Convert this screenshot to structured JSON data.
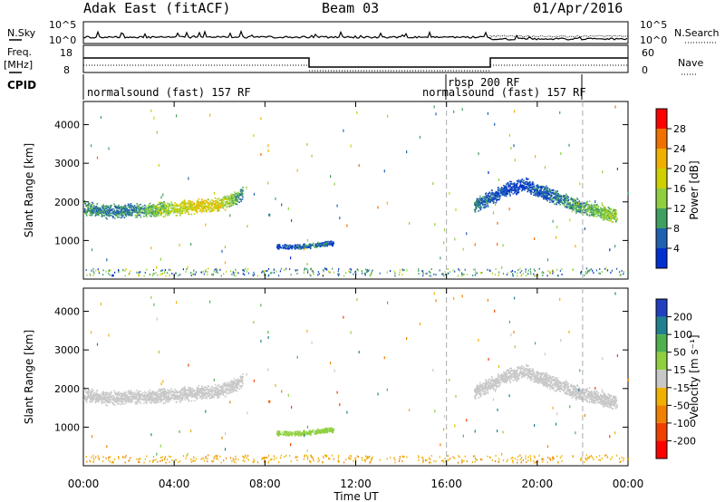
{
  "header": {
    "station": "Adak East (fitACF)",
    "beam": "Beam 03",
    "date": "01/Apr/2016"
  },
  "summary": {
    "nsky_label": "N.Sky",
    "nsearch_label": "N.Search",
    "left_ticks": [
      "10^5",
      "10^0"
    ],
    "right_ticks": [
      "10^5",
      "10^0"
    ],
    "freq_label": "Freq.",
    "freq_unit": "[MHz]",
    "freq_ticks": [
      "18",
      "8"
    ],
    "nave_ticks": [
      "60",
      "0"
    ],
    "nave_label": "Nave",
    "cpid_label": "CPID",
    "program_1": "normalsound (fast) 157 RF",
    "program_2": "rbsp 200 RF",
    "program_3": "normalsound (fast) 157 RF"
  },
  "power_bar": {
    "label": "Power [dB]",
    "ticks": [
      "28",
      "24",
      "20",
      "16",
      "12",
      "8",
      "4"
    ],
    "colors": [
      "#ff0000",
      "#f07000",
      "#f0b000",
      "#d0d000",
      "#90d040",
      "#40a060",
      "#2060b0",
      "#0030d0"
    ]
  },
  "velocity_bar": {
    "label": "Velocity [m s⁻¹]",
    "ticks": [
      "200",
      "100",
      "50",
      "15",
      "-15",
      "-50",
      "-100",
      "-200"
    ],
    "colors": [
      "#2040c0",
      "#208090",
      "#50b050",
      "#90d040",
      "#c8c8c8",
      "#f0b000",
      "#f08000",
      "#f04000",
      "#ff0000"
    ]
  },
  "chart_data": [
    {
      "type": "scatter",
      "title": "",
      "xlabel": "Time UT",
      "ylabel": "Slant Range [km]",
      "xlim": [
        "00:00",
        "24:00"
      ],
      "xticks": [
        "00:00",
        "04:00",
        "08:00",
        "12:00",
        "16:00",
        "20:00",
        "00:00"
      ],
      "ylim": [
        0,
        4600
      ],
      "yticks": [
        1000,
        2000,
        3000,
        4000
      ],
      "color_quantity": "Power [dB]",
      "series": [
        {
          "x_hours": [
            0,
            1,
            2,
            3,
            4,
            5,
            6,
            7
          ],
          "slant_range_km": [
            1850,
            1750,
            1800,
            1800,
            1850,
            1900,
            1950,
            2200
          ],
          "power_db": [
            12,
            10,
            10,
            14,
            18,
            22,
            20,
            10
          ]
        },
        {
          "x_hours": [
            8.5,
            9.5,
            10.3,
            11
          ],
          "slant_range_km": [
            850,
            850,
            900,
            950
          ],
          "power_db": [
            6,
            8,
            10,
            6
          ]
        },
        {
          "x_hours": [
            17.2,
            18.5,
            19.5,
            20.5,
            21.5,
            22.5,
            23.5
          ],
          "slant_range_km": [
            1900,
            2300,
            2450,
            2200,
            1950,
            1800,
            1650
          ],
          "power_db": [
            10,
            6,
            6,
            8,
            12,
            14,
            16
          ]
        }
      ]
    },
    {
      "type": "scatter",
      "title": "",
      "xlabel": "Time UT",
      "ylabel": "Slant Range [km]",
      "xlim": [
        "00:00",
        "24:00"
      ],
      "xticks": [
        "00:00",
        "04:00",
        "08:00",
        "12:00",
        "16:00",
        "20:00",
        "00:00"
      ],
      "ylim": [
        0,
        4600
      ],
      "yticks": [
        1000,
        2000,
        3000,
        4000
      ],
      "color_quantity": "Velocity [m s⁻¹]",
      "series": [
        {
          "x_hours": [
            0,
            1,
            2,
            3,
            4,
            5,
            6,
            7
          ],
          "slant_range_km": [
            1850,
            1750,
            1800,
            1800,
            1850,
            1900,
            1950,
            2200
          ],
          "velocity_ms": [
            0,
            0,
            0,
            0,
            0,
            0,
            0,
            0
          ]
        },
        {
          "x_hours": [
            8.5,
            9.5,
            10.3,
            11
          ],
          "slant_range_km": [
            850,
            850,
            900,
            950
          ],
          "velocity_ms": [
            30,
            30,
            30,
            30
          ]
        },
        {
          "x_hours": [
            17.2,
            18.5,
            19.5,
            20.5,
            21.5,
            22.5,
            23.5
          ],
          "slant_range_km": [
            1900,
            2300,
            2450,
            2200,
            1950,
            1800,
            1650
          ],
          "velocity_ms": [
            0,
            0,
            0,
            0,
            0,
            0,
            0
          ]
        }
      ]
    }
  ]
}
